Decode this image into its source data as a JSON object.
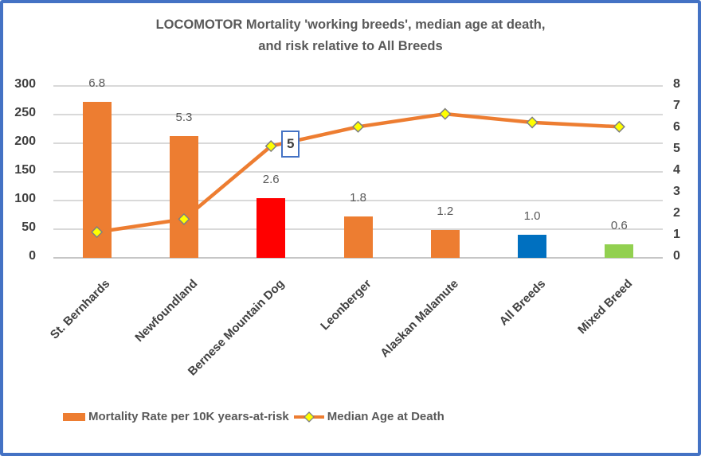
{
  "title": {
    "line1": "LOCOMOTOR Mortality 'working breeds', median age at death,",
    "line2": "and risk relative to All Breeds"
  },
  "chart_data": {
    "type": "combo-bar-line",
    "categories": [
      "St. Bernhards",
      "Newfoundland",
      "Bernese Mountain Dog",
      "Leonberger",
      "Alaskan Malamute",
      "All Breeds",
      "Mixed Breed"
    ],
    "series": [
      {
        "name": "Mortality Rate per 10K years-at-risk",
        "type": "bar",
        "axis": "left",
        "values": [
          272,
          212,
          104,
          72,
          48,
          40,
          24
        ],
        "data_labels": [
          "6.8",
          "5.3",
          "2.6",
          "1.8",
          "1.2",
          "1.0",
          "0.6"
        ],
        "bar_colors": [
          "#ED7D31",
          "#ED7D31",
          "#FF0000",
          "#ED7D31",
          "#ED7D31",
          "#0070C0",
          "#92D050"
        ]
      },
      {
        "name": "Median Age at Death",
        "type": "line",
        "axis": "right",
        "values": [
          1.2,
          1.8,
          5.2,
          6.1,
          6.7,
          6.3,
          6.1
        ],
        "line_color": "#ED7D31",
        "marker": {
          "shape": "diamond",
          "fill": "#FFFF00",
          "stroke": "#7F7F7F"
        },
        "callout": {
          "index": 2,
          "text": "5"
        }
      }
    ],
    "left_axis": {
      "min": 0,
      "max": 300,
      "step": 50,
      "ticks": [
        "300",
        "250",
        "200",
        "150",
        "100",
        "50",
        "0"
      ]
    },
    "right_axis": {
      "min": 0,
      "max": 8,
      "step": 1,
      "ticks": [
        "8",
        "7",
        "6",
        "5",
        "4",
        "3",
        "2",
        "1",
        "0"
      ]
    },
    "grid": true,
    "legend_position": "bottom"
  },
  "legend": {
    "items": [
      {
        "label": "Mortality Rate per 10K years-at-risk",
        "swatch": "bar",
        "color": "#ED7D31"
      },
      {
        "label": "Median Age at Death",
        "swatch": "line-diamond",
        "color": "#ED7D31",
        "marker_fill": "#FFFF00",
        "marker_stroke": "#7F7F7F"
      }
    ]
  },
  "colors": {
    "frame_border": "#4472C4",
    "gridline": "#D9D9D9",
    "axis_text": "#404040",
    "label_text": "#595959",
    "background": "#FFFFFF"
  }
}
